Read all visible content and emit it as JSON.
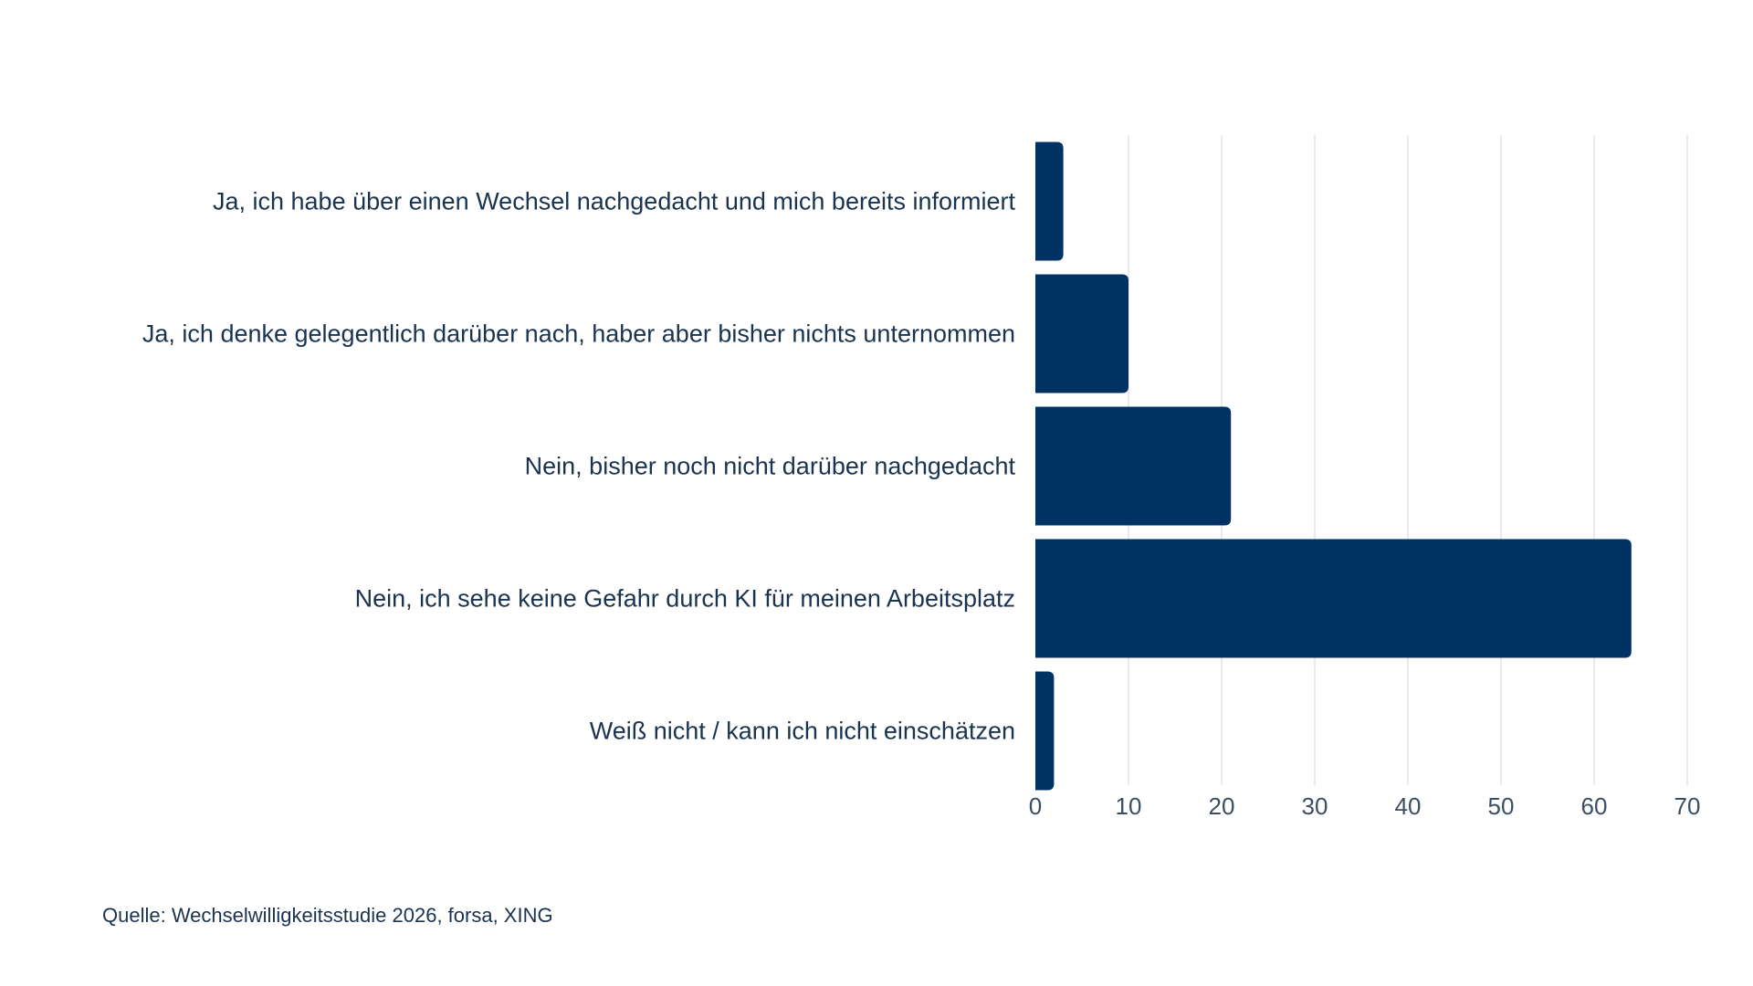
{
  "chart_data": {
    "type": "bar",
    "orientation": "horizontal",
    "categories": [
      "Ja, ich habe über einen Wechsel nachgedacht und mich bereits informiert",
      "Ja, ich denke gelegentlich darüber nach, haber aber bisher nichts unternommen",
      "Nein, bisher noch nicht darüber nachgedacht",
      "Nein, ich sehe keine Gefahr durch KI für meinen Arbeitsplatz",
      "Weiß nicht / kann ich nicht einschätzen"
    ],
    "values": [
      3,
      10,
      21,
      64,
      2
    ],
    "xlim": [
      0,
      70
    ],
    "xticks": [
      0,
      10,
      20,
      30,
      40,
      50,
      60,
      70
    ],
    "grid": "vertical",
    "bar_color": "#003363",
    "grid_color": "#dfe3e8"
  },
  "source": "Quelle: Wechselwilligkeitsstudie 2026, forsa, XING"
}
